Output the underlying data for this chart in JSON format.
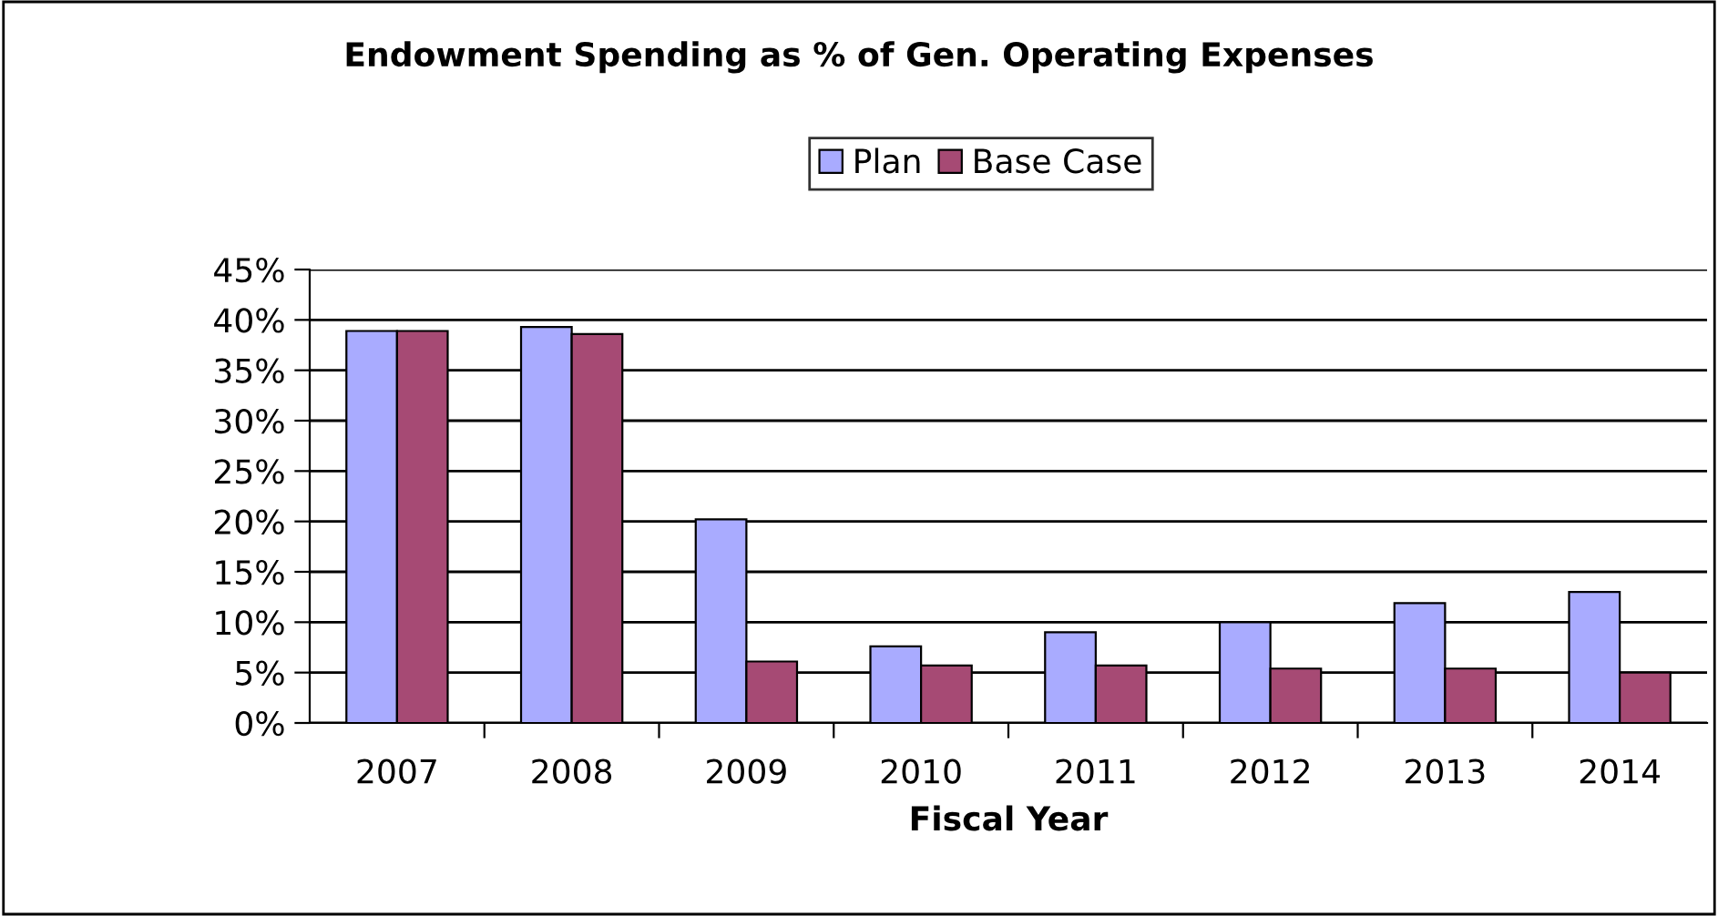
{
  "chart_data": {
    "type": "bar",
    "title": "Endowment Spending as % of Gen. Operating Expenses",
    "xlabel": "Fiscal Year",
    "categories": [
      "2007",
      "2008",
      "2009",
      "2010",
      "2011",
      "2012",
      "2013",
      "2014"
    ],
    "series": [
      {
        "name": "Plan",
        "color": "#a9abff",
        "values": [
          38.9,
          39.3,
          20.2,
          7.6,
          9.0,
          10.0,
          11.9,
          13.0
        ]
      },
      {
        "name": "Base Case",
        "color": "#a64a74",
        "values": [
          38.9,
          38.6,
          6.1,
          5.7,
          5.7,
          5.4,
          5.4,
          5.0
        ]
      }
    ],
    "ylim": [
      0,
      45
    ],
    "yticks": [
      {
        "value": 0,
        "label": "0%"
      },
      {
        "value": 5,
        "label": "5%"
      },
      {
        "value": 10,
        "label": "10%"
      },
      {
        "value": 15,
        "label": "15%"
      },
      {
        "value": 20,
        "label": "20%"
      },
      {
        "value": 25,
        "label": "25%"
      },
      {
        "value": 30,
        "label": "30%"
      },
      {
        "value": 35,
        "label": "35%"
      },
      {
        "value": 40,
        "label": "40%"
      },
      {
        "value": 45,
        "label": "45%"
      }
    ],
    "grid": "y",
    "legend": "top"
  }
}
